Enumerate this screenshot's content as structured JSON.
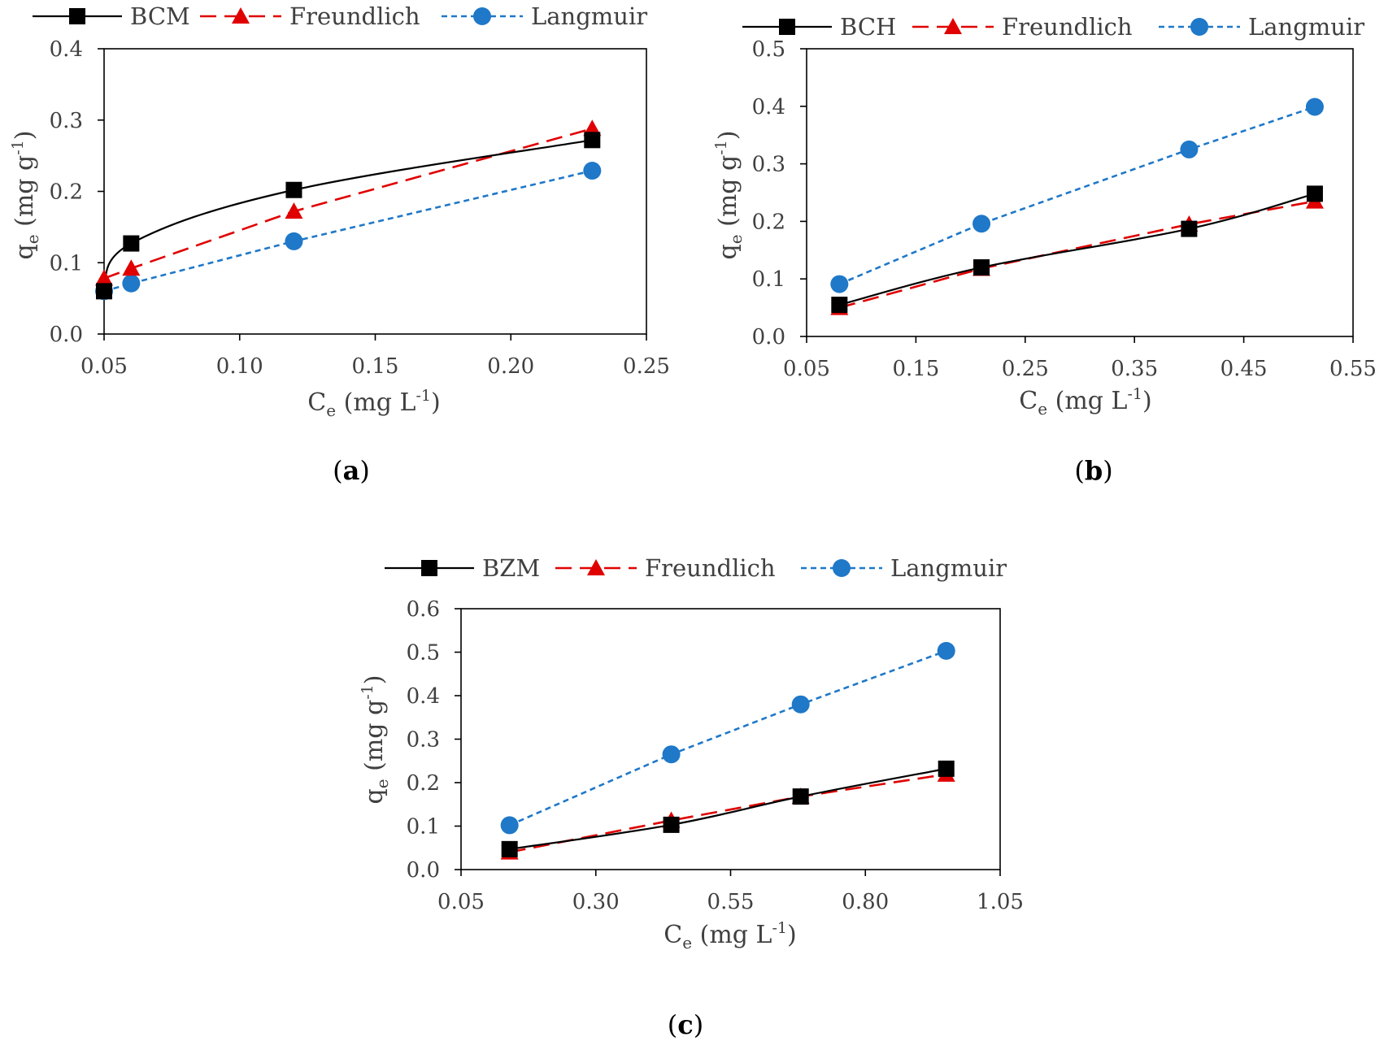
{
  "colors": {
    "data": "#000000",
    "freundlich": "#e00000",
    "langmuir": "#1f78c8",
    "axis": "#000000",
    "text": "#404040"
  },
  "chart_data": [
    {
      "type": "line",
      "panel_label": "a",
      "legend": [
        "BCM",
        "Freundlich",
        "Langmuir"
      ],
      "xlabel": "Ce (mg L-1)",
      "ylabel": "qe (mg g-1)",
      "xlim": [
        0.05,
        0.25
      ],
      "ylim": [
        0.0,
        0.4
      ],
      "xticks": [
        0.05,
        0.1,
        0.15,
        0.2,
        0.25
      ],
      "xtick_labels": [
        "0.05",
        "0.10",
        "0.15",
        "0.20",
        "0.25"
      ],
      "yticks": [
        0.0,
        0.1,
        0.2,
        0.3,
        0.4
      ],
      "ytick_labels": [
        "0.0",
        "0.1",
        "0.2",
        "0.3",
        "0.4"
      ],
      "series": [
        {
          "name": "BCM",
          "style": "data",
          "smooth": true,
          "x": [
            0.05,
            0.06,
            0.12,
            0.23
          ],
          "y": [
            0.06,
            0.127,
            0.202,
            0.272
          ]
        },
        {
          "name": "Freundlich",
          "style": "freundlich",
          "x": [
            0.05,
            0.06,
            0.12,
            0.23
          ],
          "y": [
            0.078,
            0.092,
            0.172,
            0.288
          ]
        },
        {
          "name": "Langmuir",
          "style": "langmuir",
          "x": [
            0.05,
            0.06,
            0.12,
            0.23
          ],
          "y": [
            0.06,
            0.071,
            0.13,
            0.229
          ]
        }
      ]
    },
    {
      "type": "line",
      "panel_label": "b",
      "legend": [
        "BCH",
        "Freundlich",
        "Langmuir"
      ],
      "xlabel": "Ce (mg L-1)",
      "ylabel": "qe (mg g-1)",
      "xlim": [
        0.05,
        0.55
      ],
      "ylim": [
        0.0,
        0.5
      ],
      "xticks": [
        0.05,
        0.15,
        0.25,
        0.35,
        0.45,
        0.55
      ],
      "xtick_labels": [
        "0.05",
        "0.15",
        "0.25",
        "0.35",
        "0.45",
        "0.55"
      ],
      "yticks": [
        0.0,
        0.1,
        0.2,
        0.3,
        0.4,
        0.5
      ],
      "ytick_labels": [
        "0.0",
        "0.1",
        "0.2",
        "0.3",
        "0.4",
        "0.5"
      ],
      "series": [
        {
          "name": "BCH",
          "style": "data",
          "smooth": true,
          "x": [
            0.08,
            0.21,
            0.4,
            0.515
          ],
          "y": [
            0.055,
            0.12,
            0.187,
            0.248
          ]
        },
        {
          "name": "Freundlich",
          "style": "freundlich",
          "x": [
            0.08,
            0.21,
            0.4,
            0.515
          ],
          "y": [
            0.05,
            0.118,
            0.195,
            0.235
          ]
        },
        {
          "name": "Langmuir",
          "style": "langmuir",
          "x": [
            0.08,
            0.21,
            0.4,
            0.515
          ],
          "y": [
            0.091,
            0.196,
            0.325,
            0.399
          ]
        }
      ]
    },
    {
      "type": "line",
      "panel_label": "c",
      "legend": [
        "BZM",
        "Freundlich",
        "Langmuir"
      ],
      "xlabel": "Ce (mg L-1)",
      "ylabel": "qe (mg g-1)",
      "xlim": [
        0.05,
        1.05
      ],
      "ylim": [
        0.0,
        0.6
      ],
      "xticks": [
        0.05,
        0.3,
        0.55,
        0.8,
        1.05
      ],
      "xtick_labels": [
        "0.05",
        "0.30",
        "0.55",
        "0.80",
        "1.05"
      ],
      "yticks": [
        0.0,
        0.1,
        0.2,
        0.3,
        0.4,
        0.5,
        0.6
      ],
      "ytick_labels": [
        "0.0",
        "0.1",
        "0.2",
        "0.3",
        "0.4",
        "0.5",
        "0.6"
      ],
      "series": [
        {
          "name": "BZM",
          "style": "data",
          "smooth": true,
          "x": [
            0.14,
            0.44,
            0.68,
            0.95
          ],
          "y": [
            0.047,
            0.103,
            0.168,
            0.232
          ]
        },
        {
          "name": "Freundlich",
          "style": "freundlich",
          "x": [
            0.14,
            0.44,
            0.68,
            0.95
          ],
          "y": [
            0.04,
            0.113,
            0.168,
            0.219
          ]
        },
        {
          "name": "Langmuir",
          "style": "langmuir",
          "x": [
            0.14,
            0.44,
            0.68,
            0.95
          ],
          "y": [
            0.102,
            0.265,
            0.38,
            0.503
          ]
        }
      ]
    }
  ]
}
